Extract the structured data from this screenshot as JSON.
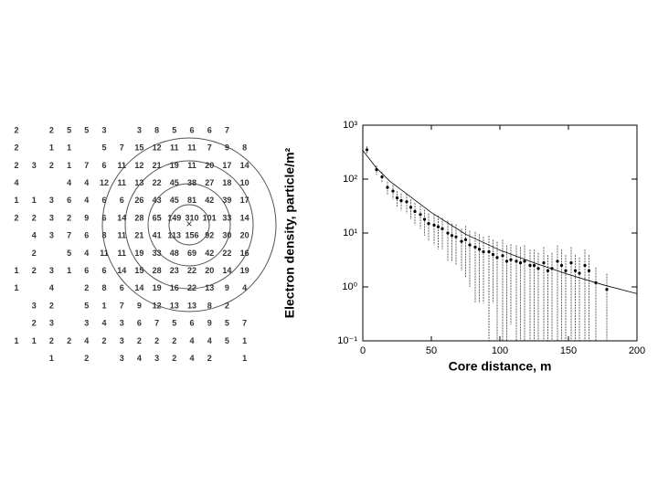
{
  "grid_figure": {
    "rows": [
      [
        2,
        null,
        2,
        5,
        5,
        3,
        null,
        3,
        8,
        5,
        6,
        6,
        7,
        null
      ],
      [
        2,
        null,
        1,
        1,
        null,
        5,
        7,
        15,
        12,
        11,
        11,
        7,
        9,
        8
      ],
      [
        2,
        3,
        2,
        1,
        7,
        6,
        11,
        12,
        21,
        19,
        11,
        20,
        17,
        14
      ],
      [
        4,
        null,
        null,
        4,
        4,
        12,
        11,
        13,
        22,
        45,
        38,
        27,
        18,
        10
      ],
      [
        1,
        1,
        3,
        6,
        4,
        6,
        6,
        26,
        43,
        45,
        81,
        42,
        39,
        17
      ],
      [
        2,
        2,
        3,
        2,
        9,
        6,
        14,
        28,
        65,
        149,
        310,
        101,
        33,
        14
      ],
      [
        null,
        4,
        3,
        7,
        6,
        8,
        11,
        21,
        41,
        113,
        156,
        92,
        30,
        20
      ],
      [
        null,
        2,
        null,
        5,
        4,
        11,
        11,
        19,
        33,
        48,
        69,
        42,
        22,
        16
      ],
      [
        1,
        2,
        3,
        1,
        6,
        6,
        14,
        15,
        28,
        23,
        22,
        20,
        14,
        19
      ],
      [
        1,
        null,
        4,
        null,
        2,
        8,
        6,
        14,
        19,
        16,
        22,
        13,
        9,
        4
      ],
      [
        null,
        3,
        2,
        null,
        5,
        1,
        7,
        9,
        12,
        13,
        13,
        8,
        2,
        null
      ],
      [
        null,
        2,
        3,
        null,
        3,
        4,
        3,
        6,
        7,
        5,
        6,
        9,
        5,
        7
      ],
      [
        1,
        1,
        2,
        2,
        4,
        2,
        3,
        2,
        2,
        2,
        4,
        4,
        5,
        1
      ],
      [
        null,
        null,
        1,
        null,
        2,
        null,
        3,
        4,
        3,
        2,
        4,
        2,
        null,
        1
      ]
    ]
  },
  "chart_data": {
    "type": "scatter",
    "x_label": "Core distance, m",
    "y_label": "Electron density, particle/m²",
    "log_y": true,
    "xlim": [
      0,
      200
    ],
    "xticks": [
      0,
      50,
      100,
      150,
      200
    ],
    "ylim": [
      0.1,
      1000
    ],
    "yticks": [
      {
        "value": 0.1,
        "label": "10⁻¹"
      },
      {
        "value": 1,
        "label": "10⁰"
      },
      {
        "value": 10,
        "label": "10¹"
      },
      {
        "value": 100,
        "label": "10²"
      },
      {
        "value": 1000,
        "label": "10³"
      }
    ],
    "series": [
      {
        "color": "#000000",
        "x": [
          3,
          10,
          14,
          18,
          22,
          25,
          28,
          32,
          35,
          38,
          42,
          45,
          48,
          52,
          55,
          58,
          62,
          65,
          68,
          72,
          75,
          78,
          82,
          85,
          88,
          92,
          95,
          98,
          102,
          105,
          108,
          112,
          115,
          118,
          122,
          125,
          128,
          132,
          135,
          138,
          142,
          145,
          148,
          152,
          155,
          158,
          162,
          165,
          170,
          178
        ],
        "values": [
          350,
          150,
          110,
          70,
          60,
          45,
          40,
          38,
          30,
          25,
          22,
          18,
          15,
          14,
          13,
          12,
          10,
          9,
          8.5,
          7,
          7.5,
          6,
          5.5,
          5,
          4.5,
          4.5,
          4,
          3.5,
          3.8,
          3,
          3.2,
          3,
          2.8,
          3,
          2.5,
          2.5,
          2.2,
          2.8,
          2,
          2.2,
          3,
          2.5,
          2,
          2.8,
          2,
          1.8,
          2.5,
          2,
          1.2,
          0.9
        ],
        "errors": [
          60,
          30,
          25,
          20,
          18,
          15,
          14,
          15,
          12,
          11,
          10,
          9,
          8,
          8,
          8,
          7,
          7,
          6,
          6,
          5,
          6,
          5,
          5,
          4.5,
          4,
          4.4,
          3.5,
          3.4,
          3.7,
          2.9,
          3,
          2.9,
          2.7,
          2.9,
          2.4,
          2.4,
          2.1,
          2.7,
          1.9,
          2.1,
          2.9,
          2.4,
          1.9,
          2.7,
          1.9,
          1.7,
          2.4,
          1.9,
          1.1,
          0.85
        ]
      },
      {
        "color": "#000000",
        "style": "line",
        "x": [
          0,
          10,
          20,
          30,
          50,
          75,
          100,
          125,
          150,
          175,
          200
        ],
        "values": [
          340,
          160,
          90,
          58,
          24,
          9.5,
          4.8,
          2.8,
          1.7,
          1.1,
          0.75
        ]
      }
    ]
  }
}
